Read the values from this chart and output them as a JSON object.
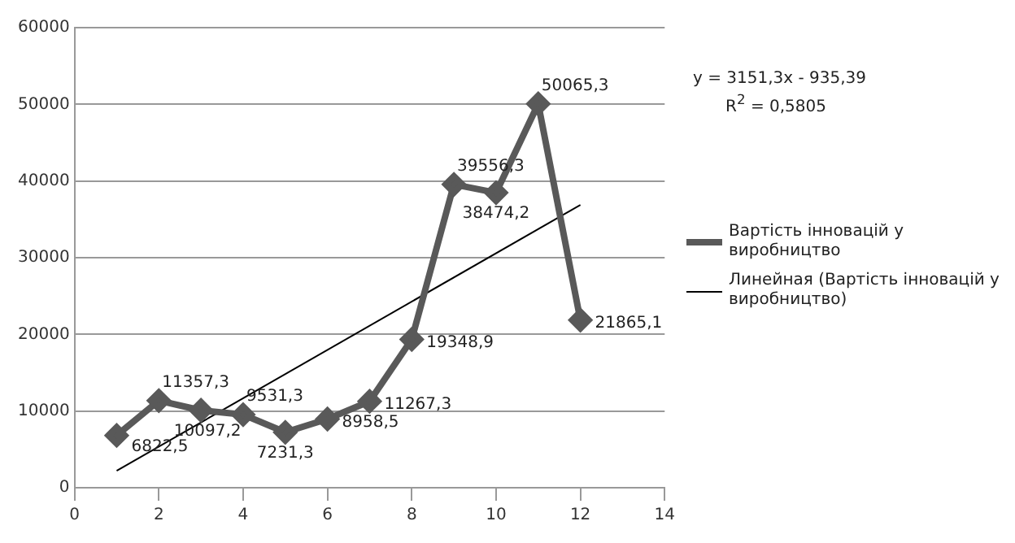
{
  "chart_data": {
    "type": "line",
    "x": [
      1,
      2,
      3,
      4,
      5,
      6,
      7,
      8,
      9,
      10,
      11,
      12
    ],
    "series": [
      {
        "name": "Вартість інновацій  у виробництво",
        "color": "#595959",
        "marker": "diamond",
        "values": [
          6822.5,
          11357.3,
          10097.2,
          9531.3,
          7231.3,
          8958.5,
          11267.3,
          19348.9,
          39556.3,
          38474.2,
          50065.3,
          21865.1
        ],
        "value_labels": [
          "6822,5",
          "11357,3",
          "10097,2",
          "9531,3",
          "7231,3",
          "8958,5",
          "11267,3",
          "19348,9",
          "39556,3",
          "38474,2",
          "50065,3",
          "21865,1"
        ]
      },
      {
        "name": "Линейная (Вартість інновацій  у виробництво)",
        "type": "line",
        "color": "#000000",
        "marker": "none",
        "x": [
          1,
          12
        ],
        "values": [
          2216,
          36880
        ]
      }
    ],
    "xlim": [
      0,
      14
    ],
    "xticks": [
      0,
      2,
      4,
      6,
      8,
      10,
      12,
      14
    ],
    "ylim": [
      0,
      60000
    ],
    "yticks": [
      0,
      10000,
      20000,
      30000,
      40000,
      50000,
      60000
    ],
    "grid": "y",
    "legend": "right",
    "annotations": [
      "y = 3151,3x - 935,39",
      "R$^{2}$ = 0,5805"
    ]
  }
}
